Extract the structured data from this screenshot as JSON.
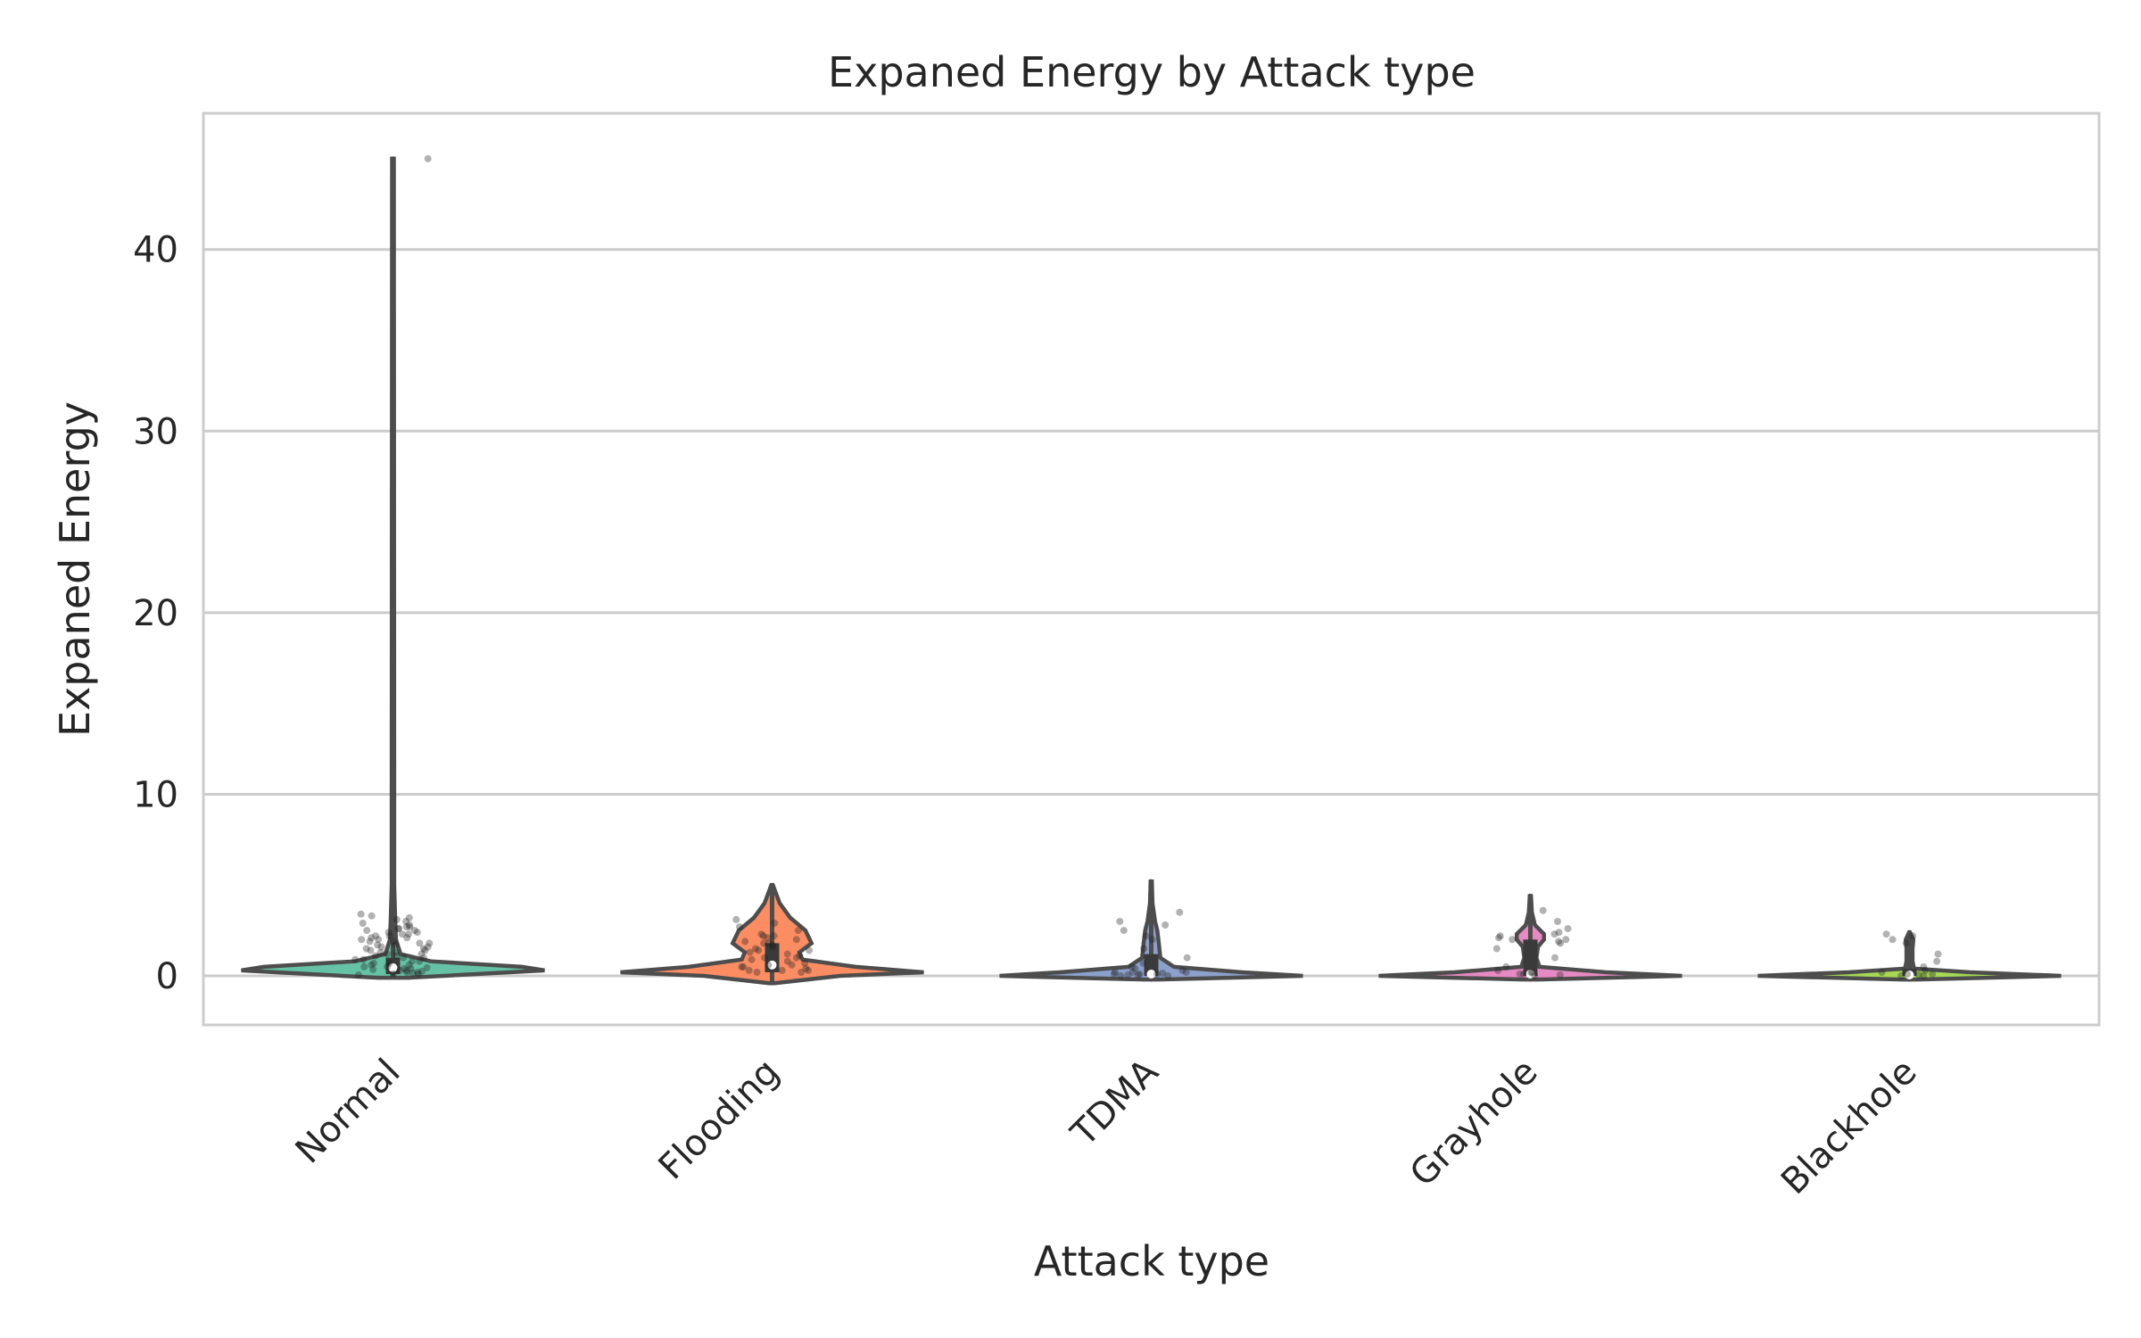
{
  "chart_data": {
    "type": "violin",
    "title": "Expaned Energy by Attack type",
    "xlabel": "Attack type",
    "ylabel": "Expaned Energy",
    "ylim": [
      -2.7,
      47.5
    ],
    "yticks": [
      0,
      10,
      20,
      30,
      40
    ],
    "grid": "horizontal",
    "legend": "none",
    "categories": [
      "Normal",
      "Flooding",
      "TDMA",
      "Grayhole",
      "Blackhole"
    ],
    "colors": [
      "#66c2a5",
      "#fc8d62",
      "#8da0cb",
      "#e78ac3",
      "#a6d854"
    ],
    "violins": [
      {
        "category": "Normal",
        "min": 0.0,
        "max": 45.0,
        "q1": 0.1,
        "median": 0.45,
        "q3": 1.0,
        "profile": [
          [
            -0.1,
            0.1
          ],
          [
            0.1,
            0.55
          ],
          [
            0.3,
            1.0
          ],
          [
            0.5,
            0.85
          ],
          [
            0.8,
            0.25
          ],
          [
            1.2,
            0.05
          ],
          [
            2.0,
            0.02
          ],
          [
            3.0,
            0.015
          ],
          [
            5.0,
            0.008
          ],
          [
            10.0,
            0.008
          ],
          [
            45.0,
            0.006
          ]
        ],
        "points": [
          0.05,
          0.1,
          0.15,
          0.2,
          0.25,
          0.3,
          0.35,
          0.4,
          0.45,
          0.5,
          0.6,
          0.7,
          0.8,
          0.9,
          1.0,
          1.1,
          1.2,
          1.3,
          1.4,
          1.5,
          1.6,
          1.7,
          1.8,
          1.9,
          2.0,
          2.1,
          2.2,
          2.3,
          2.4,
          2.5,
          2.6,
          2.7,
          2.8,
          2.9,
          3.0,
          3.1,
          3.2,
          3.3,
          3.4,
          0.2,
          0.4,
          0.6,
          0.8,
          1.0,
          1.2,
          1.4,
          1.6,
          1.8,
          2.0,
          2.2,
          2.4,
          2.6,
          0.1,
          0.3,
          0.5,
          0.7,
          0.9,
          1.1,
          1.3,
          1.5,
          1.7,
          1.9,
          2.1,
          2.3,
          2.5,
          2.7,
          45.0
        ]
      },
      {
        "category": "Flooding",
        "min": -0.4,
        "max": 5.0,
        "q1": 0.2,
        "median": 0.6,
        "q3": 1.8,
        "profile": [
          [
            -0.4,
            0.02
          ],
          [
            0.0,
            0.45
          ],
          [
            0.2,
            1.0
          ],
          [
            0.5,
            0.55
          ],
          [
            0.9,
            0.2
          ],
          [
            1.3,
            0.18
          ],
          [
            1.8,
            0.26
          ],
          [
            2.5,
            0.22
          ],
          [
            3.2,
            0.12
          ],
          [
            4.0,
            0.05
          ],
          [
            5.0,
            0.005
          ]
        ],
        "points": [
          0.2,
          0.2,
          0.3,
          0.3,
          0.4,
          0.5,
          0.5,
          0.6,
          0.7,
          0.8,
          0.9,
          1.0,
          1.1,
          1.2,
          1.3,
          1.4,
          1.5,
          1.6,
          1.7,
          1.8,
          1.9,
          2.0,
          2.1,
          2.2,
          2.3,
          2.5,
          2.7,
          2.9,
          3.1,
          0.3,
          0.6,
          1.0,
          1.4,
          1.8,
          2.2
        ]
      },
      {
        "category": "TDMA",
        "min": -0.2,
        "max": 5.2,
        "q1": 0.0,
        "median": 0.1,
        "q3": 1.2,
        "profile": [
          [
            -0.2,
            0.05
          ],
          [
            0.0,
            1.0
          ],
          [
            0.2,
            0.6
          ],
          [
            0.5,
            0.15
          ],
          [
            1.0,
            0.06
          ],
          [
            1.8,
            0.05
          ],
          [
            2.5,
            0.04
          ],
          [
            3.0,
            0.025
          ],
          [
            4.0,
            0.008
          ],
          [
            5.2,
            0.004
          ]
        ],
        "points": [
          0.0,
          0.0,
          0.05,
          0.1,
          0.1,
          0.15,
          0.2,
          0.2,
          0.3,
          0.4,
          0.5,
          0.7,
          1.0,
          1.5,
          2.0,
          2.2,
          2.5,
          2.8,
          3.0,
          3.5,
          0.05,
          0.1,
          0.2
        ]
      },
      {
        "category": "Grayhole",
        "min": -0.2,
        "max": 4.4,
        "q1": 0.0,
        "median": 0.1,
        "q3": 2.0,
        "profile": [
          [
            -0.2,
            0.05
          ],
          [
            0.0,
            1.0
          ],
          [
            0.2,
            0.5
          ],
          [
            0.5,
            0.06
          ],
          [
            1.0,
            0.04
          ],
          [
            1.6,
            0.05
          ],
          [
            2.0,
            0.09
          ],
          [
            2.3,
            0.09
          ],
          [
            2.8,
            0.03
          ],
          [
            3.5,
            0.01
          ],
          [
            4.4,
            0.004
          ]
        ],
        "points": [
          0.0,
          0.05,
          0.1,
          0.2,
          0.3,
          0.5,
          1.0,
          1.5,
          1.8,
          1.9,
          2.0,
          2.0,
          2.1,
          2.2,
          2.3,
          2.4,
          2.6,
          3.0,
          3.6,
          0.1,
          0.2
        ]
      },
      {
        "category": "Blackhole",
        "min": -0.2,
        "max": 2.4,
        "q1": 0.0,
        "median": 0.05,
        "q3": 0.4,
        "profile": [
          [
            -0.2,
            0.05
          ],
          [
            0.0,
            1.0
          ],
          [
            0.2,
            0.4
          ],
          [
            0.4,
            0.03
          ],
          [
            0.8,
            0.02
          ],
          [
            1.5,
            0.02
          ],
          [
            2.0,
            0.025
          ],
          [
            2.4,
            0.003
          ]
        ],
        "points": [
          0.0,
          0.0,
          0.05,
          0.1,
          0.2,
          0.3,
          0.5,
          0.8,
          1.2,
          1.8,
          2.0,
          2.2,
          2.3,
          0.1
        ]
      }
    ]
  }
}
